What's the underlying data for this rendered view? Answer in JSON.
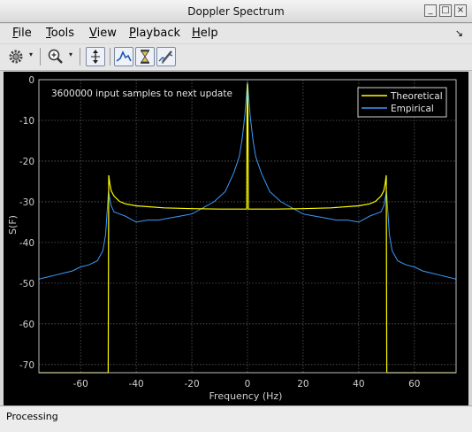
{
  "window": {
    "title": "Doppler Spectrum",
    "buttons": [
      "_",
      "□",
      "×"
    ]
  },
  "menu": {
    "items": [
      "File",
      "Tools",
      "View",
      "Playback",
      "Help"
    ],
    "dock_glyph": "↘"
  },
  "toolbar": {
    "icons": [
      "gear-icon",
      "dropdown-arrow-icon",
      "zoom-in-icon",
      "dropdown-arrow-icon",
      "scale-y-icon",
      "show-spectrum-icon",
      "hourglass-icon",
      "edit-style-icon"
    ],
    "drop_glyph": "▾"
  },
  "status": {
    "text": "Processing"
  },
  "colors": {
    "theoretical": "#ffff00",
    "empirical": "#3a9bff",
    "grid": "#5a5a5a",
    "axis_text": "#cfcfcf",
    "background": "#000000"
  },
  "chart_data": {
    "type": "line",
    "title": "",
    "annotation": "3600000 input samples to next update",
    "xlabel": "Frequency (Hz)",
    "ylabel": "S(F)",
    "xlim": [
      -75,
      75
    ],
    "ylim": [
      -72,
      0
    ],
    "xticks": [
      -60,
      -40,
      -20,
      0,
      20,
      40,
      60
    ],
    "yticks": [
      0,
      -10,
      -20,
      -30,
      -40,
      -50,
      -60,
      -70
    ],
    "grid": true,
    "legend": {
      "placement": "top-right",
      "entries": [
        "Theoretical",
        "Empirical"
      ]
    },
    "series": [
      {
        "name": "Theoretical",
        "x": [
          -75,
          -50.1,
          -50,
          -49.9,
          -49.5,
          -49,
          -48,
          -46,
          -44,
          -40,
          -30,
          -20,
          -10,
          -0.3,
          -0.15,
          0,
          0.15,
          0.3,
          10,
          20,
          30,
          40,
          44,
          46,
          48,
          49,
          49.5,
          49.9,
          50,
          50.1,
          75
        ],
        "y": [
          -72,
          -72,
          -48,
          -23.5,
          -25.5,
          -27.3,
          -28.6,
          -29.9,
          -30.5,
          -31.0,
          -31.5,
          -31.7,
          -31.8,
          -31.8,
          -7.5,
          -1,
          -7.5,
          -31.8,
          -31.8,
          -31.7,
          -31.5,
          -31.0,
          -30.5,
          -29.9,
          -28.6,
          -27.3,
          -25.5,
          -23.5,
          -48,
          -72,
          -72
        ]
      },
      {
        "name": "Empirical",
        "x": [
          -75,
          -72,
          -69,
          -66,
          -63,
          -60,
          -57,
          -54,
          -52,
          -51,
          -50,
          -49,
          -48,
          -46,
          -44,
          -40,
          -36,
          -32,
          -28,
          -24,
          -20,
          -16,
          -12,
          -8,
          -5,
          -3,
          -2,
          -1,
          0,
          1,
          2,
          3,
          5,
          8,
          12,
          16,
          20,
          24,
          28,
          32,
          36,
          40,
          44,
          46,
          48,
          49,
          50,
          51,
          52,
          54,
          57,
          60,
          63,
          66,
          69,
          72,
          75
        ],
        "y": [
          -49,
          -48.5,
          -48,
          -47.5,
          -47,
          -46,
          -45.5,
          -44.5,
          -42,
          -38,
          -27.5,
          -31,
          -32.5,
          -33,
          -33.5,
          -35,
          -34.5,
          -34.5,
          -34,
          -33.5,
          -33,
          -31.5,
          -30,
          -27.5,
          -23,
          -19,
          -15,
          -9,
          -0.5,
          -9,
          -15,
          -19,
          -23,
          -27.5,
          -30,
          -31.5,
          -33,
          -33.5,
          -34,
          -34.5,
          -34.5,
          -35,
          -33.5,
          -33,
          -32.5,
          -31,
          -27.5,
          -38,
          -42,
          -44.5,
          -45.5,
          -46,
          -47,
          -47.5,
          -48,
          -48.5,
          -49
        ]
      }
    ]
  }
}
